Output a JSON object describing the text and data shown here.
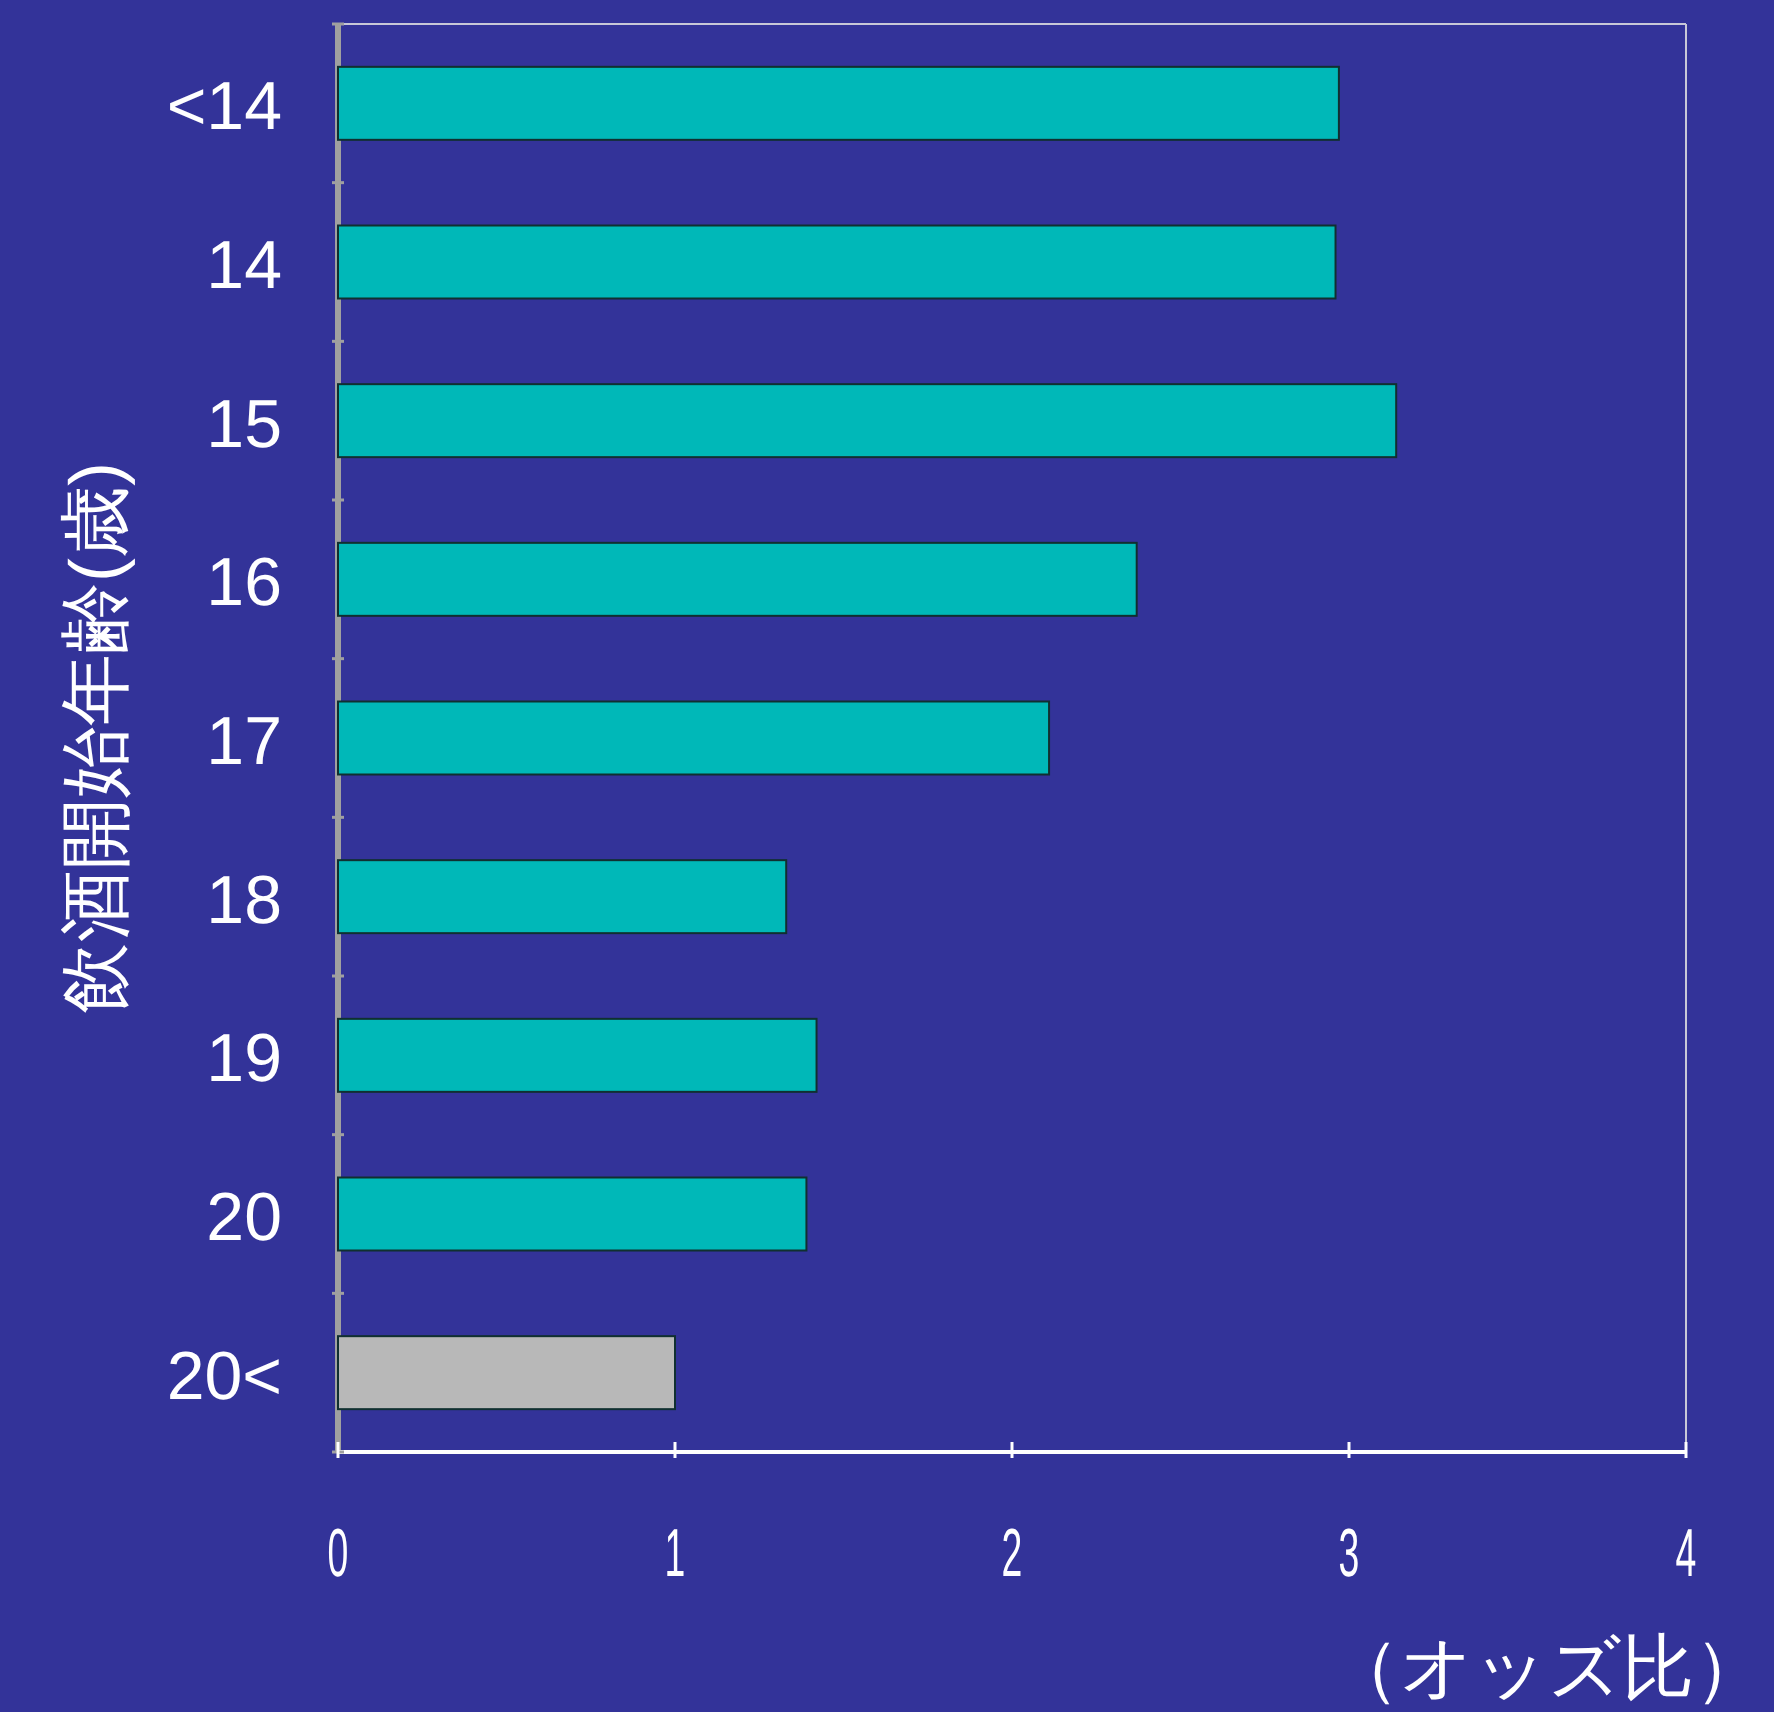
{
  "chart_data": {
    "type": "bar",
    "orientation": "horizontal",
    "xlabel": "（オッズ比）",
    "ylabel": "飲酒開始年齢(歳)",
    "categories": [
      "<14",
      "14",
      "15",
      "16",
      "17",
      "18",
      "19",
      "20",
      "20<"
    ],
    "values": [
      2.97,
      2.96,
      3.14,
      2.37,
      2.11,
      1.33,
      1.42,
      1.39,
      1.0
    ],
    "colors": [
      "#00b8b8",
      "#00b8b8",
      "#00b8b8",
      "#00b8b8",
      "#00b8b8",
      "#00b8b8",
      "#00b8b8",
      "#00b8b8",
      "#b8b8b8"
    ],
    "xlim": [
      0,
      4
    ],
    "xticks": [
      0,
      1,
      2,
      3,
      4
    ],
    "grid": false
  }
}
